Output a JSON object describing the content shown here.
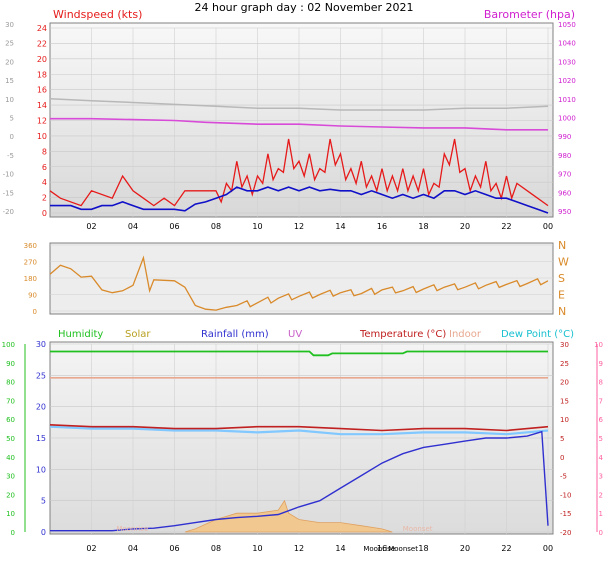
{
  "title": "24 hour graph day : 02 November 2021",
  "colors": {
    "wind": "#e61a1a",
    "gust_base": "#ff2a2a",
    "avg": "#1010c8",
    "baro": "#d84ad8",
    "baro_text": "#d020d0",
    "grey_line": "#b8b8b8",
    "dir": "#d98a2a",
    "humidity": "#20c020",
    "solar": "#b8a020",
    "rain": "#3030d0",
    "uv": "#c860c8",
    "temp": "#c02020",
    "indoor": "#e8a890",
    "dew": "#18c0d0",
    "dew_line": "#80c8ff",
    "frame": "#808080"
  },
  "chart_data": [
    {
      "type": "line",
      "name": "wind",
      "left_title": "Windspeed (kts)",
      "right_title": "Barometer (hpa)",
      "x_ticks": [
        "02",
        "04",
        "06",
        "08",
        "10",
        "12",
        "14",
        "16",
        "18",
        "20",
        "22",
        "00"
      ],
      "y_left_ticks": [
        "24",
        "22",
        "20",
        "18",
        "16",
        "14",
        "12",
        "10",
        "8",
        "6",
        "4",
        "2",
        "0"
      ],
      "y_left_range": [
        0,
        25
      ],
      "y_outer_ticks": [
        "30",
        "25",
        "20",
        "15",
        "10",
        "5",
        "0",
        "-5",
        "-10",
        "-15",
        "-20"
      ],
      "y_right_ticks": [
        "1050",
        "1040",
        "1030",
        "1020",
        "1010",
        "1000",
        "990",
        "980",
        "970",
        "960",
        "950"
      ],
      "y_right_range": [
        950,
        1050
      ],
      "barometer": [
        [
          0.0,
          1001
        ],
        [
          2.0,
          1001
        ],
        [
          4.0,
          1000.5
        ],
        [
          6.0,
          1000
        ],
        [
          7.5,
          999
        ],
        [
          10.0,
          998
        ],
        [
          12.0,
          998
        ],
        [
          14.0,
          997
        ],
        [
          16.0,
          996.5
        ],
        [
          18.0,
          996
        ],
        [
          20.0,
          996
        ],
        [
          22.0,
          995
        ],
        [
          24.0,
          995
        ]
      ],
      "grey_trace": [
        [
          0.0,
          10
        ],
        [
          2.0,
          9.5
        ],
        [
          4.0,
          9
        ],
        [
          6.0,
          8.5
        ],
        [
          8.0,
          8
        ],
        [
          10.0,
          7.5
        ],
        [
          12.0,
          7.5
        ],
        [
          14.0,
          7
        ],
        [
          16.0,
          7
        ],
        [
          18.0,
          7
        ],
        [
          20.0,
          7.5
        ],
        [
          22.0,
          7.5
        ],
        [
          24.0,
          8
        ]
      ],
      "wind_envelope": [
        [
          0.0,
          3
        ],
        [
          0.5,
          2
        ],
        [
          1.5,
          1
        ],
        [
          2.0,
          3
        ],
        [
          3.0,
          2
        ],
        [
          3.5,
          5
        ],
        [
          4.0,
          3
        ],
        [
          4.5,
          2
        ],
        [
          5.0,
          1
        ],
        [
          5.5,
          2
        ],
        [
          6.0,
          1
        ],
        [
          6.5,
          3
        ],
        [
          7.0,
          3
        ],
        [
          8.0,
          3
        ],
        [
          8.5,
          4
        ],
        [
          9.0,
          7
        ],
        [
          9.5,
          5
        ],
        [
          10.0,
          5
        ],
        [
          10.5,
          8
        ],
        [
          11.0,
          6
        ],
        [
          11.5,
          10
        ],
        [
          12.0,
          7
        ],
        [
          12.5,
          8
        ],
        [
          13.0,
          6
        ],
        [
          13.5,
          10
        ],
        [
          14.0,
          8
        ],
        [
          14.5,
          6
        ],
        [
          15.0,
          7
        ],
        [
          15.5,
          5
        ],
        [
          16.0,
          6
        ],
        [
          16.5,
          5
        ],
        [
          17.0,
          6
        ],
        [
          17.5,
          5
        ],
        [
          18.0,
          6
        ],
        [
          18.5,
          4
        ],
        [
          19.0,
          8
        ],
        [
          19.5,
          10
        ],
        [
          20.0,
          6
        ],
        [
          20.5,
          5
        ],
        [
          21.0,
          7
        ],
        [
          21.5,
          4
        ],
        [
          22.0,
          5
        ],
        [
          22.5,
          4
        ],
        [
          23.0,
          3
        ],
        [
          23.5,
          2
        ],
        [
          24.0,
          1
        ]
      ],
      "wind_avg": [
        [
          0.0,
          1
        ],
        [
          1.0,
          1
        ],
        [
          1.5,
          0.5
        ],
        [
          2.0,
          0.5
        ],
        [
          2.5,
          1
        ],
        [
          3.0,
          1
        ],
        [
          3.5,
          1.5
        ],
        [
          4.0,
          1
        ],
        [
          4.5,
          0.5
        ],
        [
          5.0,
          0.5
        ],
        [
          5.5,
          0.5
        ],
        [
          6.0,
          0.5
        ],
        [
          6.5,
          0.3
        ],
        [
          7.0,
          1.2
        ],
        [
          7.5,
          1.5
        ],
        [
          8.0,
          2
        ],
        [
          8.5,
          2.5
        ],
        [
          9.0,
          3.5
        ],
        [
          9.5,
          3
        ],
        [
          10.0,
          3
        ],
        [
          10.5,
          3.5
        ],
        [
          11.0,
          3
        ],
        [
          11.5,
          3.5
        ],
        [
          12.0,
          3
        ],
        [
          12.5,
          3.5
        ],
        [
          13.0,
          3
        ],
        [
          13.5,
          3.2
        ],
        [
          14.0,
          3
        ],
        [
          14.5,
          3
        ],
        [
          15.0,
          2.5
        ],
        [
          15.5,
          3
        ],
        [
          16.0,
          2.5
        ],
        [
          16.5,
          2
        ],
        [
          17.0,
          2.5
        ],
        [
          17.5,
          2
        ],
        [
          18.0,
          2.5
        ],
        [
          18.5,
          2
        ],
        [
          19.0,
          3
        ],
        [
          19.5,
          3
        ],
        [
          20.0,
          2.5
        ],
        [
          20.5,
          3
        ],
        [
          21.0,
          2.5
        ],
        [
          21.5,
          2
        ],
        [
          22.0,
          2
        ],
        [
          22.5,
          1.5
        ],
        [
          23.0,
          1
        ],
        [
          23.5,
          0.5
        ],
        [
          24.0,
          0
        ]
      ]
    },
    {
      "type": "line",
      "name": "wind-direction",
      "y_left_ticks": [
        "360",
        "270",
        "180",
        "90",
        "0"
      ],
      "y_range": [
        0,
        360
      ],
      "y_right_ticks": [
        "N",
        "W",
        "S",
        "E",
        "N"
      ],
      "direction": [
        [
          0.0,
          200
        ],
        [
          0.5,
          250
        ],
        [
          1.0,
          230
        ],
        [
          1.5,
          185
        ],
        [
          2.0,
          190
        ],
        [
          2.5,
          115
        ],
        [
          3.0,
          100
        ],
        [
          3.5,
          110
        ],
        [
          4.0,
          140
        ],
        [
          4.5,
          290
        ],
        [
          4.8,
          110
        ],
        [
          5.0,
          170
        ],
        [
          6.0,
          165
        ],
        [
          6.5,
          130
        ],
        [
          7.0,
          30
        ],
        [
          7.5,
          10
        ],
        [
          8.0,
          5
        ],
        [
          8.5,
          20
        ],
        [
          9.0,
          30
        ],
        [
          10.0,
          45
        ],
        [
          11.0,
          70
        ],
        [
          12.0,
          80
        ],
        [
          13.0,
          90
        ],
        [
          14.0,
          100
        ],
        [
          15.0,
          95
        ],
        [
          16.0,
          115
        ],
        [
          17.0,
          110
        ],
        [
          18.0,
          120
        ],
        [
          19.0,
          130
        ],
        [
          20.0,
          130
        ],
        [
          21.0,
          140
        ],
        [
          22.0,
          145
        ],
        [
          23.0,
          150
        ],
        [
          24.0,
          165
        ]
      ]
    },
    {
      "type": "line",
      "name": "temperature",
      "legend": [
        {
          "label": "Humidity",
          "color": "#20c020"
        },
        {
          "label": "Solar",
          "color": "#b8a020"
        },
        {
          "label": "Rainfall (mm)",
          "color": "#3030d0"
        },
        {
          "label": "UV",
          "color": "#c860c8"
        },
        {
          "label": "Temperature (°C)",
          "color": "#c02020"
        },
        {
          "label": "Indoor",
          "color": "#e8a890"
        },
        {
          "label": "Dew Point (°C)",
          "color": "#18c0d0"
        }
      ],
      "y_humidity_ticks": [
        "100",
        "90",
        "80",
        "70",
        "60",
        "50",
        "40",
        "30",
        "20",
        "10",
        "0"
      ],
      "y_rain_ticks": [
        "30",
        "25",
        "20",
        "15",
        "10",
        "5",
        "0"
      ],
      "y_rain_range": [
        0,
        30
      ],
      "y_temp_ticks": [
        "30",
        "25",
        "20",
        "15",
        "10",
        "5",
        "0",
        "-5",
        "-10",
        "-15",
        "-20"
      ],
      "y_temp_range": [
        -20,
        30
      ],
      "y_uv_ticks": [
        "10",
        "9",
        "8",
        "7",
        "6",
        "5",
        "4",
        "3",
        "2",
        "1",
        "0"
      ],
      "humidity": [
        [
          0.0,
          96
        ],
        [
          12.5,
          96
        ],
        [
          12.7,
          94
        ],
        [
          13.4,
          94
        ],
        [
          13.6,
          95
        ],
        [
          17.0,
          95
        ],
        [
          17.2,
          96
        ],
        [
          24.0,
          96
        ]
      ],
      "indoor_temp": [
        [
          0.0,
          21
        ],
        [
          6.0,
          21
        ],
        [
          12.0,
          21
        ],
        [
          14.0,
          21
        ],
        [
          18.0,
          21
        ],
        [
          24.0,
          21
        ]
      ],
      "temperature": [
        [
          0.0,
          8.5
        ],
        [
          2.0,
          8
        ],
        [
          4.0,
          8
        ],
        [
          6.0,
          7.5
        ],
        [
          8.0,
          7.5
        ],
        [
          10.0,
          8
        ],
        [
          12.0,
          8
        ],
        [
          14.0,
          7.5
        ],
        [
          16.0,
          7
        ],
        [
          18.0,
          7.5
        ],
        [
          20.0,
          7.5
        ],
        [
          22.0,
          7
        ],
        [
          24.0,
          8
        ]
      ],
      "dew_point": [
        [
          0.0,
          8
        ],
        [
          2.0,
          7.5
        ],
        [
          4.0,
          7.5
        ],
        [
          6.0,
          7
        ],
        [
          8.0,
          7
        ],
        [
          10.0,
          6.5
        ],
        [
          12.0,
          7
        ],
        [
          14.0,
          6
        ],
        [
          16.0,
          6
        ],
        [
          18.0,
          6.5
        ],
        [
          20.0,
          6.5
        ],
        [
          22.0,
          6
        ],
        [
          24.0,
          7
        ]
      ],
      "rainfall": [
        [
          0.0,
          0.2
        ],
        [
          3.0,
          0.2
        ],
        [
          4.0,
          0.5
        ],
        [
          5.0,
          0.6
        ],
        [
          6.0,
          1
        ],
        [
          7.0,
          1.5
        ],
        [
          8.0,
          2
        ],
        [
          9.0,
          2.3
        ],
        [
          10.0,
          2.5
        ],
        [
          11.0,
          2.8
        ],
        [
          12.0,
          4
        ],
        [
          13.0,
          5
        ],
        [
          14.0,
          7
        ],
        [
          15.0,
          9
        ],
        [
          16.0,
          11
        ],
        [
          17.0,
          12.5
        ],
        [
          18.0,
          13.5
        ],
        [
          19.0,
          14
        ],
        [
          20.0,
          14.5
        ],
        [
          21.0,
          15
        ],
        [
          22.0,
          15
        ],
        [
          23.0,
          15.3
        ],
        [
          23.7,
          16
        ],
        [
          24.0,
          1
        ]
      ],
      "solar": [
        [
          6.5,
          0
        ],
        [
          7.0,
          0.5
        ],
        [
          8.0,
          2
        ],
        [
          9.0,
          3
        ],
        [
          10.0,
          3
        ],
        [
          11.0,
          3.5
        ],
        [
          11.3,
          5
        ],
        [
          11.5,
          3
        ],
        [
          12.0,
          2
        ],
        [
          13.0,
          1.5
        ],
        [
          14.0,
          1.5
        ],
        [
          15.0,
          1
        ],
        [
          16.0,
          0.5
        ],
        [
          16.5,
          0
        ]
      ],
      "annotations": [
        "Moonrise",
        "Moonset",
        "Moonrise",
        "Moonset"
      ],
      "x_ticks": [
        "02",
        "04",
        "06",
        "08",
        "10",
        "12",
        "14",
        "",
        "16",
        "18",
        "20",
        "22",
        "00"
      ]
    }
  ]
}
